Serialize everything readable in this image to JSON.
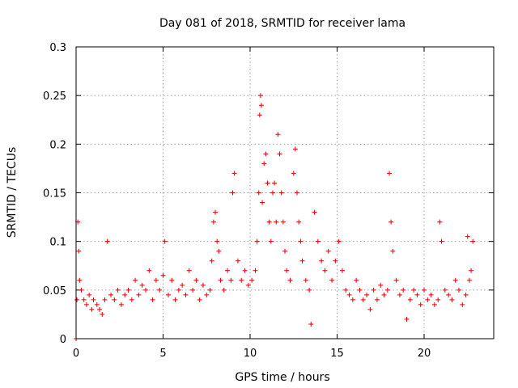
{
  "chart_data": {
    "type": "scatter",
    "title": "Day 081 of 2018, SRMTID for receiver lama",
    "xlabel": "GPS time / hours",
    "ylabel": "SRMTID / TECUs",
    "xlim": [
      0,
      24
    ],
    "ylim": [
      0,
      0.3
    ],
    "xticks": [
      0,
      5,
      10,
      15,
      20
    ],
    "yticks": [
      0,
      0.05,
      0.1,
      0.15,
      0.2,
      0.25,
      0.3
    ],
    "xtick_labels": [
      "0",
      "5",
      "10",
      "15",
      "20"
    ],
    "ytick_labels": [
      "0",
      "0.05",
      "0.1",
      "0.15",
      "0.2",
      "0.25",
      "0.3"
    ],
    "grid": true,
    "marker": "+",
    "color": "#e00000",
    "series": [
      {
        "name": "SRMTID",
        "x": [
          0.0,
          0.05,
          0.1,
          0.15,
          0.2,
          0.3,
          0.45,
          0.6,
          0.75,
          0.9,
          1.0,
          1.2,
          1.35,
          1.5,
          1.65,
          1.8,
          2.0,
          2.2,
          2.4,
          2.6,
          2.8,
          3.0,
          3.2,
          3.4,
          3.6,
          3.8,
          4.0,
          4.2,
          4.4,
          4.6,
          4.8,
          5.0,
          5.1,
          5.3,
          5.5,
          5.7,
          5.9,
          6.1,
          6.3,
          6.5,
          6.7,
          6.9,
          7.1,
          7.3,
          7.5,
          7.7,
          7.8,
          7.9,
          8.0,
          8.1,
          8.2,
          8.3,
          8.5,
          8.7,
          8.9,
          9.0,
          9.1,
          9.3,
          9.5,
          9.7,
          9.9,
          10.1,
          10.3,
          10.4,
          10.5,
          10.55,
          10.6,
          10.65,
          10.7,
          10.8,
          10.9,
          11.0,
          11.1,
          11.2,
          11.3,
          11.4,
          11.5,
          11.6,
          11.7,
          11.8,
          11.9,
          12.0,
          12.1,
          12.3,
          12.5,
          12.6,
          12.7,
          12.8,
          12.9,
          13.0,
          13.2,
          13.4,
          13.5,
          13.7,
          13.9,
          14.1,
          14.3,
          14.5,
          14.7,
          14.9,
          15.1,
          15.3,
          15.5,
          15.7,
          15.9,
          16.1,
          16.3,
          16.5,
          16.7,
          16.9,
          17.1,
          17.3,
          17.5,
          17.7,
          17.9,
          18.0,
          18.1,
          18.2,
          18.4,
          18.6,
          18.8,
          19.0,
          19.2,
          19.4,
          19.6,
          19.8,
          20.0,
          20.2,
          20.4,
          20.6,
          20.8,
          20.9,
          21.0,
          21.2,
          21.4,
          21.6,
          21.8,
          22.0,
          22.2,
          22.4,
          22.5,
          22.6,
          22.7,
          22.8
        ],
        "y": [
          0.0,
          0.04,
          0.12,
          0.09,
          0.06,
          0.05,
          0.04,
          0.035,
          0.045,
          0.03,
          0.04,
          0.035,
          0.03,
          0.025,
          0.04,
          0.1,
          0.045,
          0.04,
          0.05,
          0.035,
          0.045,
          0.05,
          0.04,
          0.06,
          0.045,
          0.055,
          0.05,
          0.07,
          0.04,
          0.06,
          0.05,
          0.065,
          0.1,
          0.045,
          0.06,
          0.04,
          0.05,
          0.055,
          0.045,
          0.07,
          0.05,
          0.06,
          0.04,
          0.055,
          0.045,
          0.05,
          0.08,
          0.12,
          0.13,
          0.1,
          0.09,
          0.06,
          0.05,
          0.07,
          0.06,
          0.15,
          0.17,
          0.08,
          0.06,
          0.07,
          0.055,
          0.06,
          0.07,
          0.1,
          0.15,
          0.23,
          0.25,
          0.24,
          0.14,
          0.18,
          0.19,
          0.16,
          0.12,
          0.1,
          0.15,
          0.16,
          0.12,
          0.21,
          0.19,
          0.15,
          0.12,
          0.09,
          0.07,
          0.06,
          0.17,
          0.195,
          0.15,
          0.12,
          0.1,
          0.08,
          0.06,
          0.05,
          0.015,
          0.13,
          0.1,
          0.08,
          0.07,
          0.09,
          0.06,
          0.08,
          0.1,
          0.07,
          0.05,
          0.045,
          0.04,
          0.06,
          0.05,
          0.04,
          0.045,
          0.03,
          0.05,
          0.04,
          0.055,
          0.045,
          0.05,
          0.17,
          0.12,
          0.09,
          0.06,
          0.045,
          0.05,
          0.02,
          0.04,
          0.05,
          0.045,
          0.035,
          0.05,
          0.04,
          0.045,
          0.035,
          0.04,
          0.12,
          0.1,
          0.05,
          0.045,
          0.04,
          0.06,
          0.05,
          0.035,
          0.045,
          0.105,
          0.06,
          0.07,
          0.1
        ]
      }
    ]
  }
}
